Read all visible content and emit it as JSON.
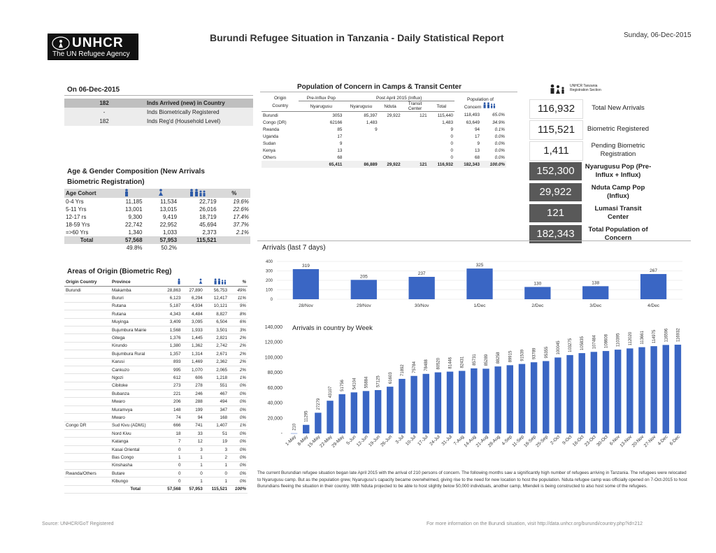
{
  "header": {
    "logo_text": "UNHCR",
    "logo_sub": "The UN Refugee Agency",
    "title": "Burundi Refugee Situation in Tanzania - Daily Statistical Report",
    "date": "Sunday, 06-Dec-2015"
  },
  "summary": {
    "heading": "On 06-Dec-2015",
    "rows": [
      {
        "value": "182",
        "label": "Inds Arrived (new) in Country"
      },
      {
        "value": "-",
        "label": "Inds Biometrically Registered"
      },
      {
        "value": "182",
        "label": "Inds Reg'd (Household Level)"
      }
    ]
  },
  "age_gender": {
    "heading1": "Age & Gender Composition (New Arrivals",
    "heading2": "Biometric Registration)",
    "col_label": "Age Cohort",
    "pct_header": "%",
    "rows": [
      {
        "cohort": "0-4 Yrs",
        "m": "11,185",
        "f": "11,534",
        "t": "22,719",
        "p": "19.6%"
      },
      {
        "cohort": "5-11 Yrs",
        "m": "13,001",
        "f": "13,015",
        "t": "26,016",
        "p": "22.6%"
      },
      {
        "cohort": "12-17 rs",
        "m": "9,300",
        "f": "9,419",
        "t": "18,719",
        "p": "17.4%"
      },
      {
        "cohort": "18-59 Yrs",
        "m": "22,742",
        "f": "22,952",
        "t": "45,694",
        "p": "37.7%"
      },
      {
        "cohort": "=>60 Yrs",
        "m": "1,340",
        "f": "1,033",
        "t": "2,373",
        "p": "2.1%"
      }
    ],
    "total": {
      "label": "Total",
      "m": "57,568",
      "f": "57,953",
      "t": "115,521"
    },
    "share": {
      "m": "49.8%",
      "f": "50.2%"
    }
  },
  "origin": {
    "heading": "Areas of Origin (Biometric Reg)",
    "h_country": "Origin Country",
    "h_province": "Province",
    "h_pct": "%",
    "rows": [
      {
        "c": "Burundi",
        "p": "Makamba",
        "m": "28,863",
        "f": "27,890",
        "t": "56,753",
        "pc": "49%"
      },
      {
        "c": "",
        "p": "Bururi",
        "m": "6,123",
        "f": "6,294",
        "t": "12,417",
        "pc": "11%"
      },
      {
        "c": "",
        "p": "Rutana",
        "m": "5,187",
        "f": "4,934",
        "t": "10,121",
        "pc": "9%"
      },
      {
        "c": "",
        "p": "Rutana",
        "m": "4,343",
        "f": "4,484",
        "t": "8,827",
        "pc": "8%"
      },
      {
        "c": "",
        "p": "Muyinga",
        "m": "3,409",
        "f": "3,095",
        "t": "6,504",
        "pc": "6%"
      },
      {
        "c": "",
        "p": "Bujumbura Mairie",
        "m": "1,568",
        "f": "1,933",
        "t": "3,501",
        "pc": "3%"
      },
      {
        "c": "",
        "p": "Gitega",
        "m": "1,376",
        "f": "1,445",
        "t": "2,821",
        "pc": "2%"
      },
      {
        "c": "",
        "p": "Kirundo",
        "m": "1,380",
        "f": "1,362",
        "t": "2,742",
        "pc": "2%"
      },
      {
        "c": "",
        "p": "Bujumbura Rural",
        "m": "1,357",
        "f": "1,314",
        "t": "2,671",
        "pc": "2%"
      },
      {
        "c": "",
        "p": "Karusi",
        "m": "893",
        "f": "1,469",
        "t": "2,362",
        "pc": "2%"
      },
      {
        "c": "",
        "p": "Cankuzo",
        "m": "995",
        "f": "1,070",
        "t": "2,065",
        "pc": "2%"
      },
      {
        "c": "",
        "p": "Ngozi",
        "m": "612",
        "f": "606",
        "t": "1,218",
        "pc": "1%"
      },
      {
        "c": "",
        "p": "Cibitoke",
        "m": "273",
        "f": "278",
        "t": "551",
        "pc": "0%"
      },
      {
        "c": "",
        "p": "Bubanza",
        "m": "221",
        "f": "246",
        "t": "467",
        "pc": "0%"
      },
      {
        "c": "",
        "p": "Mwaro",
        "m": "206",
        "f": "288",
        "t": "494",
        "pc": "0%"
      },
      {
        "c": "",
        "p": "Muramvya",
        "m": "148",
        "f": "199",
        "t": "347",
        "pc": "0%"
      },
      {
        "c": "",
        "p": "Mwaro",
        "m": "74",
        "f": "94",
        "t": "168",
        "pc": "0%"
      },
      {
        "c": "Congo DR",
        "p": "Sud Kivu (ADM1)",
        "m": "666",
        "f": "741",
        "t": "1,407",
        "pc": "1%",
        "sep": true
      },
      {
        "c": "",
        "p": "Nord Kivu",
        "m": "18",
        "f": "33",
        "t": "51",
        "pc": "0%"
      },
      {
        "c": "",
        "p": "Katanga",
        "m": "7",
        "f": "12",
        "t": "19",
        "pc": "0%"
      },
      {
        "c": "",
        "p": "Kasai Oriental",
        "m": "0",
        "f": "3",
        "t": "3",
        "pc": "0%"
      },
      {
        "c": "",
        "p": "Bas Congo",
        "m": "1",
        "f": "1",
        "t": "2",
        "pc": "0%"
      },
      {
        "c": "",
        "p": "Kinshasha",
        "m": "0",
        "f": "1",
        "t": "1",
        "pc": "0%"
      },
      {
        "c": "Rwanda/Others",
        "p": "Butare",
        "m": "0",
        "f": "0",
        "t": "0",
        "pc": "0%",
        "sep": true
      },
      {
        "c": "",
        "p": "Kibungo",
        "m": "0",
        "f": "1",
        "t": "1",
        "pc": "0%"
      }
    ],
    "total": {
      "label": "Total",
      "m": "57,568",
      "f": "57,953",
      "t": "115,521",
      "pc": "100%"
    }
  },
  "poc": {
    "heading": "Population of Concern in Camps & Transit Center",
    "h_origin": "Origin",
    "h_country": "Country",
    "h_pre": "Pre-Influx Pop",
    "h_post": "Post April 2015 (Influx)",
    "h_nyarugusu": "Nyarugusu",
    "h_nduta": "Nduta",
    "h_transit": "Transit Center",
    "h_total": "Total",
    "h_pop1": "Population of",
    "h_pop2": "Concern",
    "rows": [
      {
        "c": "Burundi",
        "pre": "3053",
        "ny": "85,397",
        "nd": "29,922",
        "tr": "121",
        "tot": "115,440",
        "pop": "118,493",
        "pct": "65.0%"
      },
      {
        "c": "Congo (DR)",
        "pre": "62166",
        "ny": "1,483",
        "nd": "",
        "tr": "",
        "tot": "1,483",
        "pop": "63,649",
        "pct": "34.9%"
      },
      {
        "c": "Rwanda",
        "pre": "85",
        "ny": "9",
        "nd": "",
        "tr": "",
        "tot": "9",
        "pop": "94",
        "pct": "0.1%"
      },
      {
        "c": "Uganda",
        "pre": "17",
        "ny": "",
        "nd": "",
        "tr": "",
        "tot": "0",
        "pop": "17",
        "pct": "0.0%"
      },
      {
        "c": "Sudan",
        "pre": "9",
        "ny": "",
        "nd": "",
        "tr": "",
        "tot": "0",
        "pop": "9",
        "pct": "0.0%"
      },
      {
        "c": "Kenya",
        "pre": "13",
        "ny": "",
        "nd": "",
        "tr": "",
        "tot": "0",
        "pop": "13",
        "pct": "0.0%"
      },
      {
        "c": "Others",
        "pre": "68",
        "ny": "",
        "nd": "",
        "tr": "",
        "tot": "0",
        "pop": "68",
        "pct": "0.0%"
      }
    ],
    "total": {
      "pre": "65,411",
      "ny": "86,889",
      "nd": "29,922",
      "tr": "121",
      "tot": "116,932",
      "pop": "182,343",
      "pct": "100.0%"
    }
  },
  "kpis": {
    "legend": "UNHCR Tanzania Registration Section",
    "items": [
      {
        "num": "116,932",
        "label": "Total New Arrivals",
        "style": "light"
      },
      {
        "num": "115,521",
        "label": "Biometric Registered",
        "style": "light"
      },
      {
        "num": "1,411",
        "label": "Pending Biometric Registration",
        "style": "light"
      },
      {
        "num": "152,300",
        "label": "Nyarugusu Pop (Pre-Influx + Influx)",
        "style": "mixed"
      },
      {
        "num": "29,922",
        "label": "Nduta Camp Pop (Influx)",
        "style": "mixed"
      },
      {
        "num": "121",
        "label": "Lumasi Transit Center",
        "style": "mixed"
      },
      {
        "num": "182,343",
        "label": "Total Population of Concern",
        "style": "mixed"
      }
    ]
  },
  "chart_data": [
    {
      "type": "bar",
      "title": "Arrivals (last 7 days)",
      "categories": [
        "28/Nov",
        "29/Nov",
        "30/Nov",
        "1/Dec",
        "2/Dec",
        "3/Dec",
        "4/Dec"
      ],
      "values": [
        319,
        205,
        237,
        325,
        130,
        138,
        267
      ],
      "ylim": [
        0,
        400
      ],
      "yticks": [
        0,
        100,
        200,
        300,
        400
      ],
      "color": "#3a66c4"
    },
    {
      "type": "bar",
      "title": "Arrivals in country by Week",
      "categories": [
        "1-May",
        "8-May",
        "15-May",
        "22-May",
        "29-May",
        "5-Jun",
        "12-Jun",
        "19-Jun",
        "26-Jun",
        "3-Jul",
        "10-Jul",
        "17-Jul",
        "24-Jul",
        "31-Jul",
        "7-Aug",
        "14-Aug",
        "21-Aug",
        "28-Aug",
        "4-Sep",
        "11-Sep",
        "18-Sep",
        "25-Sep",
        "2-Oct",
        "9-Oct",
        "16-Oct",
        "23-Oct",
        "30-Oct",
        "6-Nov",
        "13-Nov",
        "20-Nov",
        "27-Nov",
        "4-Dec",
        "6-Dec"
      ],
      "values": [
        210,
        11295,
        27279,
        43107,
        51756,
        54104,
        55884,
        57125,
        61603,
        71892,
        75784,
        78488,
        80520,
        81446,
        82431,
        85731,
        85289,
        88258,
        89915,
        91539,
        93789,
        95355,
        100045,
        103275,
        105835,
        107484,
        108608,
        110395,
        112020,
        113661,
        114975,
        116596,
        116932
      ],
      "ylim": [
        0,
        140000
      ],
      "yticks": [
        "-",
        "20,000",
        "40,000",
        "60,000",
        "80,000",
        "100,000",
        "120,000",
        "140,000"
      ],
      "color": "#3a66c4"
    }
  ],
  "narrative": "The current Burundian refugee situation began late April 2015 with the arrival of 210 persons of concern. The following months saw a significantly high number of refugees arriving in Tanzania. The refugees were relocated to Nyarugusu camp. But as the population grew, Nyarugusu's capacity became overwhelmed, giving rise to the need for new location to host the population. Nduta refugee camp was officially opened on 7-Oct-2015 to host Burundians fleeing the situation in their country. With Nduta projected to be able to host slightly below 50,000 individuals, another camp, Mtendeli is being constructed to also host some of the refugees.",
  "footer": {
    "source": "Source: UNHCR/GoT Registered",
    "more": "For more information on the Burundi situation, visit http://data.unhcr.org/burundi/country.php?id=212"
  }
}
